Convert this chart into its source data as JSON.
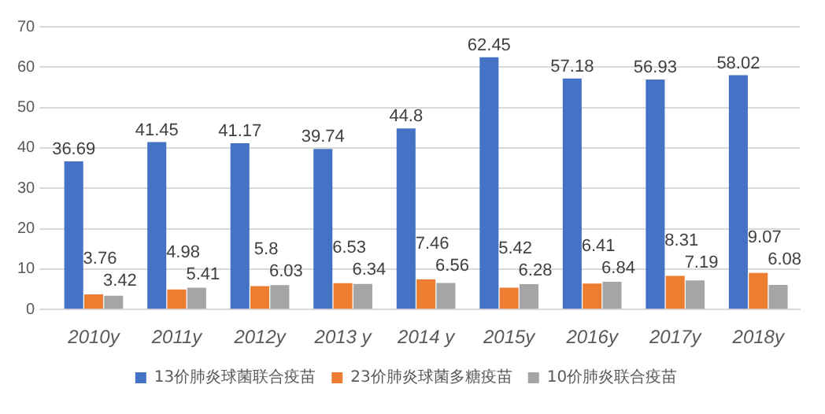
{
  "chart_data": {
    "type": "bar",
    "categories": [
      "2010y",
      "2011y",
      "2012y",
      "2013 y",
      "2014 y",
      "2015y",
      "2016y",
      "2017y",
      "2018y"
    ],
    "series": [
      {
        "name": "13价肺炎球菌联合疫苗",
        "color": "#4472c4",
        "values": [
          36.69,
          41.45,
          41.17,
          39.74,
          44.8,
          62.45,
          57.18,
          56.93,
          58.02
        ]
      },
      {
        "name": "23价肺炎球菌多糖疫苗",
        "color": "#ed7d31",
        "values": [
          3.76,
          4.98,
          5.8,
          6.53,
          7.46,
          5.42,
          6.41,
          8.31,
          9.07
        ]
      },
      {
        "name": "10价肺炎联合疫苗",
        "color": "#a5a5a5",
        "values": [
          3.42,
          5.41,
          6.03,
          6.34,
          6.56,
          6.28,
          6.84,
          7.19,
          6.08
        ]
      }
    ],
    "ylim": [
      0,
      70
    ],
    "yticks": [
      0,
      10,
      20,
      30,
      40,
      50,
      60,
      70
    ],
    "grid": "y",
    "legend": "bottom",
    "data_labels": true
  }
}
